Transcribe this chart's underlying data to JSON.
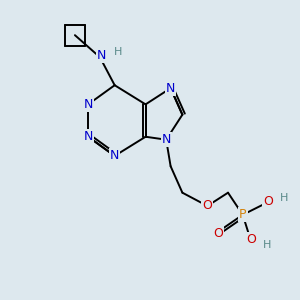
{
  "background_color": "#dde8ee",
  "atom_colors": {
    "C": "#000000",
    "N": "#0000cc",
    "O": "#cc0000",
    "P": "#d4820a",
    "H": "#5a8a8a"
  },
  "figsize": [
    3.0,
    3.0
  ],
  "dpi": 100
}
